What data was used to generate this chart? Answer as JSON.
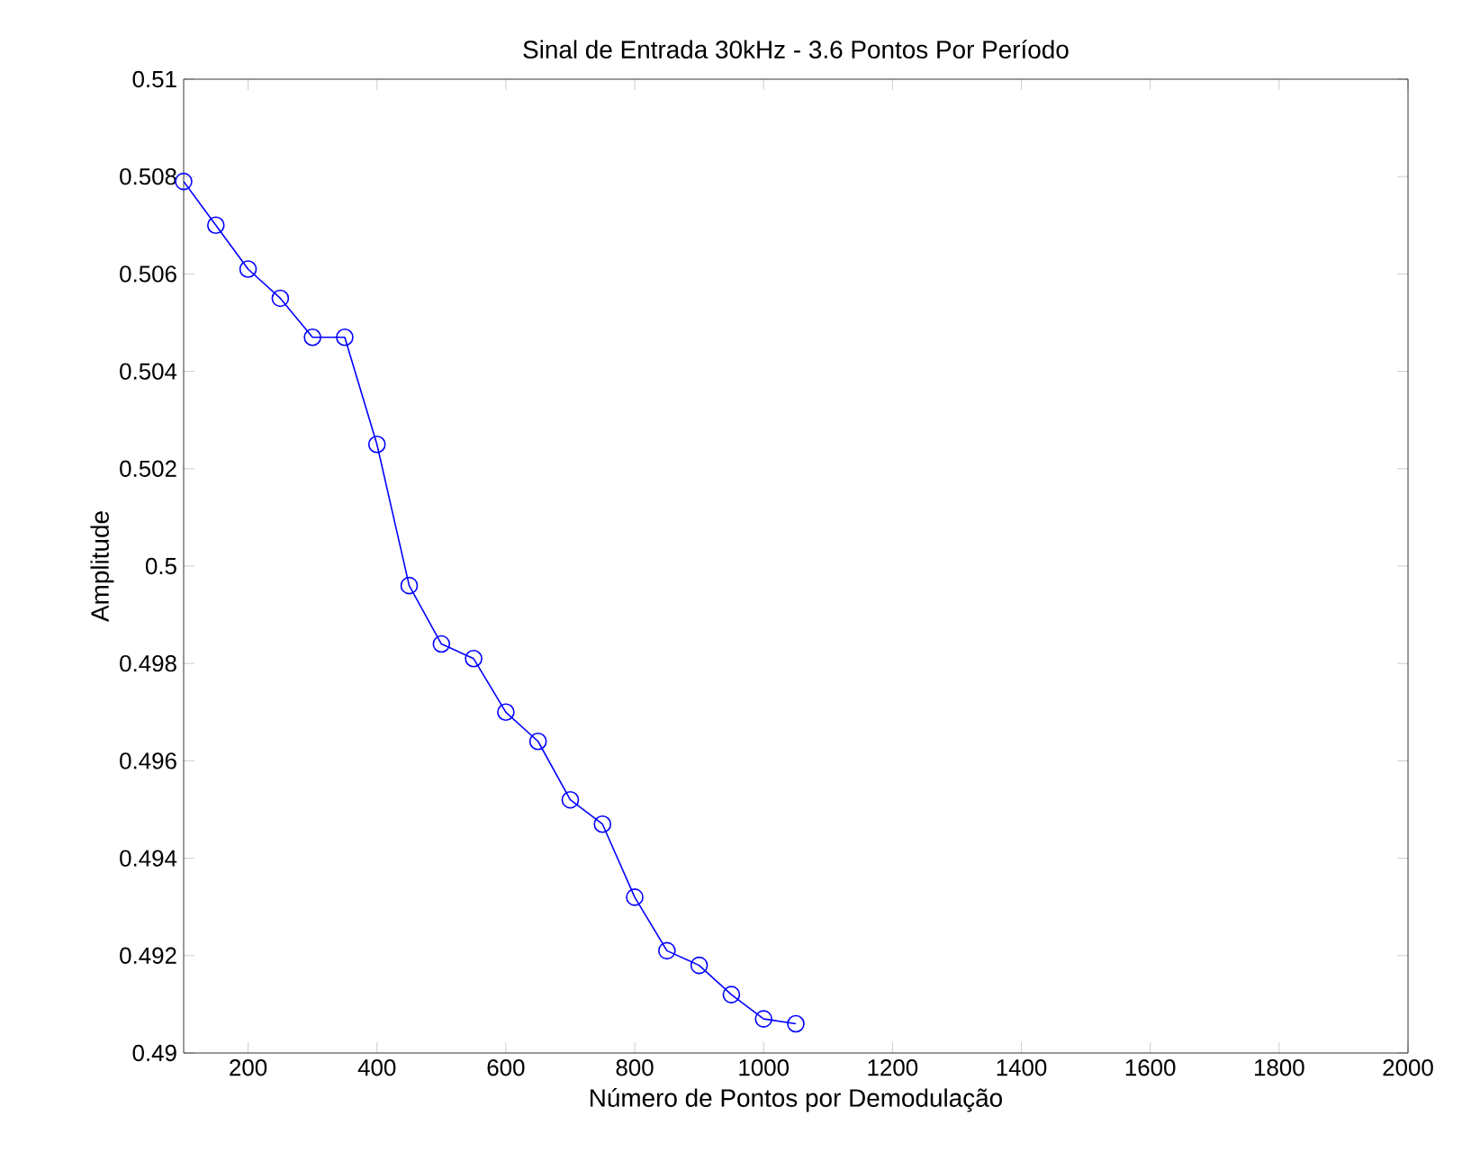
{
  "chart_data": {
    "type": "line",
    "title": "Sinal de Entrada 30kHz -  3.6 Pontos Por Período",
    "xlabel": "Número de Pontos por Demodulação",
    "ylabel": "Amplitude",
    "x": [
      100,
      150,
      200,
      250,
      300,
      350,
      400,
      450,
      500,
      550,
      600,
      650,
      700,
      750,
      800,
      850,
      900,
      950,
      1000,
      1050
    ],
    "series": [
      {
        "color": "#0000ff",
        "values": [
          0.5079,
          0.507,
          0.5061,
          0.5055,
          0.5047,
          0.5047,
          0.5025,
          0.4996,
          0.4984,
          0.4981,
          0.497,
          0.4964,
          0.4952,
          0.4947,
          0.4932,
          0.4921,
          0.4918,
          0.4912,
          0.4907,
          0.4906
        ]
      }
    ],
    "xlim": [
      100,
      2000
    ],
    "ylim": [
      0.49,
      0.51
    ],
    "xticks": [
      200,
      400,
      600,
      800,
      1000,
      1200,
      1400,
      1600,
      1800,
      2000
    ],
    "yticks": [
      0.49,
      0.492,
      0.494,
      0.496,
      0.498,
      0.5,
      0.502,
      0.504,
      0.506,
      0.508,
      0.51
    ],
    "marker": "circle",
    "line_style": "solid",
    "grid": false
  }
}
